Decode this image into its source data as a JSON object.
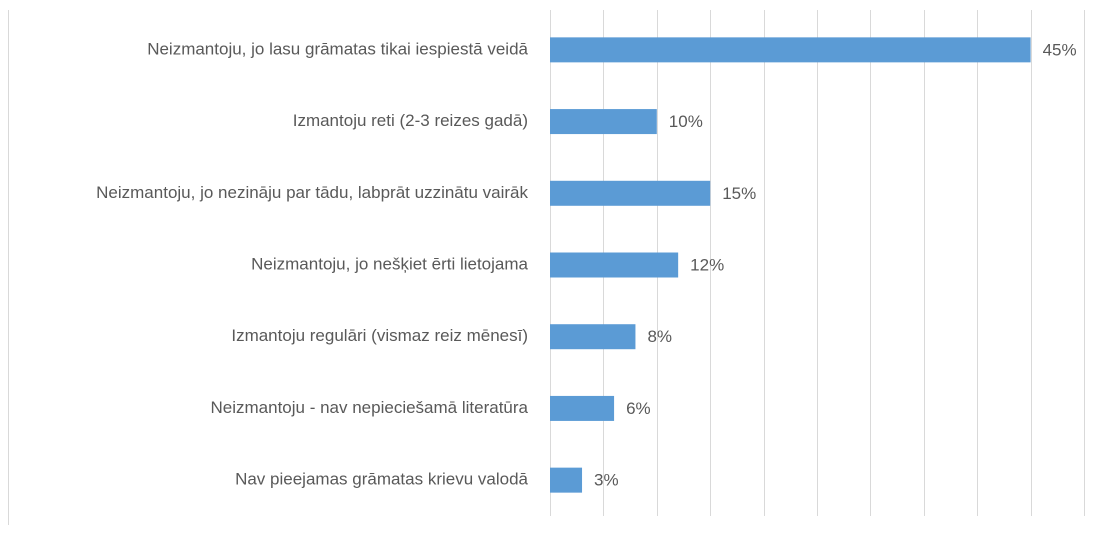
{
  "chart_data": {
    "type": "barh",
    "categories": [
      "Neizmantoju, jo lasu grāmatas tikai iespiestā veidā",
      "Izmantoju reti (2-3 reizes gadā)",
      "Neizmantoju, jo nezināju par tādu, labprāt uzzinātu vairāk",
      "Neizmantoju, jo nešķiet ērti lietojama",
      "Izmantoju regulāri (vismaz reiz mēnesī)",
      "Neizmantoju - nav nepieciešamā literatūra",
      "Nav pieejamas grāmatas krievu valodā"
    ],
    "values": [
      45,
      10,
      15,
      12,
      8,
      6,
      3
    ],
    "value_labels": [
      "45%",
      "10%",
      "15%",
      "12%",
      "8%",
      "6%",
      "3%"
    ],
    "color": "#5b9bd5",
    "xlim": [
      0,
      50
    ],
    "xticks": [
      0,
      5,
      10,
      15,
      20,
      25,
      30,
      35,
      40,
      45,
      50
    ],
    "grid": true
  }
}
